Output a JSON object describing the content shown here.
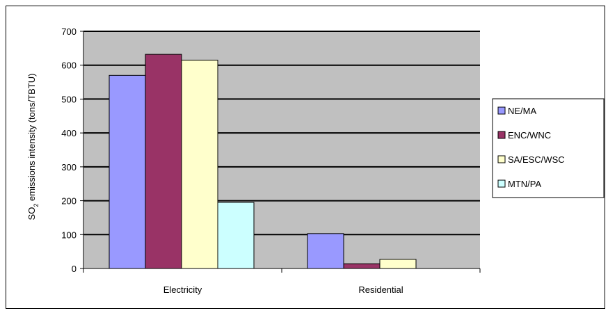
{
  "chart_data": {
    "type": "bar",
    "categories": [
      "Electricity",
      "Residential"
    ],
    "series": [
      {
        "name": "NE/MA",
        "values": [
          570,
          103
        ],
        "color": "#9999ff"
      },
      {
        "name": "ENC/WNC",
        "values": [
          632,
          14
        ],
        "color": "#993366"
      },
      {
        "name": "SA/ESC/WSC",
        "values": [
          615,
          27
        ],
        "color": "#ffffcc"
      },
      {
        "name": "MTN/PA",
        "values": [
          195,
          0
        ],
        "color": "#ccffff"
      }
    ],
    "yticks": [
      "0",
      "100",
      "200",
      "300",
      "400",
      "500",
      "600",
      "700"
    ],
    "ylim": [
      0,
      700
    ],
    "ylabel_prefix": "SO",
    "ylabel_subscript": "2",
    "ylabel_suffix": " emissions intensity (tons/TBTU)",
    "xlabel": "",
    "title": "",
    "grid": true,
    "legend": "right",
    "plot_background": "#c0c0c0"
  }
}
